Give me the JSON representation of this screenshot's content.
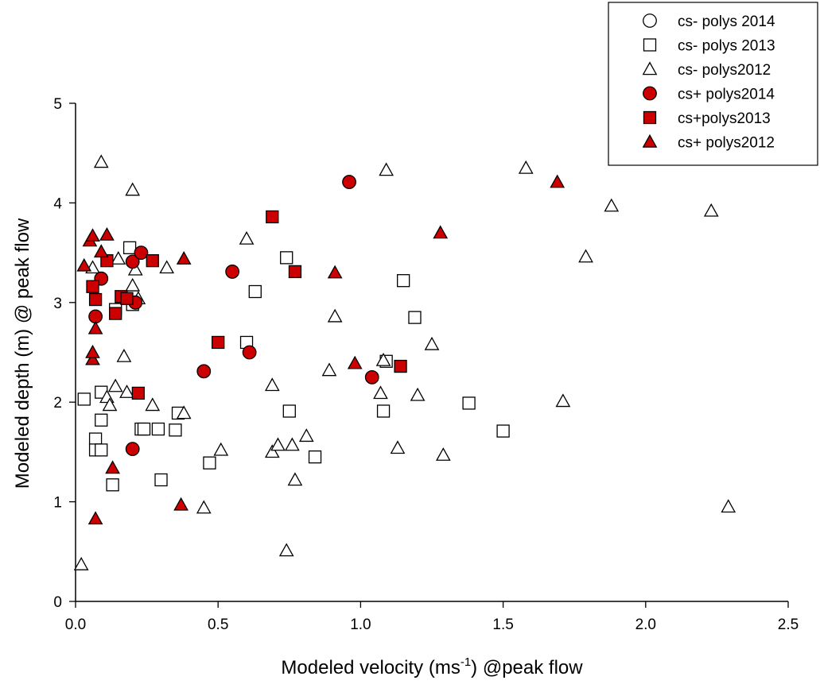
{
  "chart_data": {
    "type": "scatter",
    "xlabel": "Modeled velocity (ms",
    "xlabel_sup": "-1",
    "xlabel_suffix": ") @peak flow",
    "ylabel": "Modeled depth (m) @ peak flow",
    "xlim": [
      0,
      2.5
    ],
    "ylim": [
      0,
      5
    ],
    "xticks": [
      "0.0",
      "0.5",
      "1.0",
      "1.5",
      "2.0",
      "2.5"
    ],
    "yticks": [
      "0",
      "1",
      "2",
      "3",
      "4",
      "5"
    ],
    "grid": false,
    "legend_placement": "top-right",
    "series": [
      {
        "name": "cs- polys 2014",
        "marker": "circle",
        "fill": "#ffffff",
        "stroke": "#000000",
        "points": []
      },
      {
        "name": "cs- polys 2013",
        "marker": "square",
        "fill": "#ffffff",
        "stroke": "#000000",
        "points": [
          [
            0.03,
            2.03
          ],
          [
            0.07,
            1.63
          ],
          [
            0.07,
            1.52
          ],
          [
            0.09,
            1.52
          ],
          [
            0.09,
            1.82
          ],
          [
            0.09,
            2.1
          ],
          [
            0.13,
            1.17
          ],
          [
            0.14,
            2.93
          ],
          [
            0.19,
            3.55
          ],
          [
            0.2,
            2.98
          ],
          [
            0.23,
            1.73
          ],
          [
            0.24,
            1.73
          ],
          [
            0.29,
            1.73
          ],
          [
            0.3,
            1.22
          ],
          [
            0.35,
            1.72
          ],
          [
            0.36,
            1.89
          ],
          [
            0.47,
            1.39
          ],
          [
            0.6,
            2.6
          ],
          [
            0.63,
            3.11
          ],
          [
            0.74,
            3.45
          ],
          [
            0.75,
            1.91
          ],
          [
            0.84,
            1.45
          ],
          [
            1.08,
            1.91
          ],
          [
            1.09,
            2.41
          ],
          [
            1.15,
            3.22
          ],
          [
            1.19,
            2.85
          ],
          [
            1.38,
            1.99
          ],
          [
            1.5,
            1.71
          ]
        ]
      },
      {
        "name": "cs- polys2012",
        "marker": "triangle",
        "fill": "#ffffff",
        "stroke": "#000000",
        "points": [
          [
            0.02,
            0.37
          ],
          [
            0.06,
            3.35
          ],
          [
            0.09,
            4.41
          ],
          [
            0.11,
            2.05
          ],
          [
            0.12,
            1.97
          ],
          [
            0.14,
            2.16
          ],
          [
            0.15,
            3.44
          ],
          [
            0.17,
            2.46
          ],
          [
            0.18,
            2.1
          ],
          [
            0.2,
            3.17
          ],
          [
            0.2,
            4.13
          ],
          [
            0.21,
            3.33
          ],
          [
            0.22,
            3.04
          ],
          [
            0.27,
            1.97
          ],
          [
            0.32,
            3.35
          ],
          [
            0.38,
            1.89
          ],
          [
            0.45,
            0.94
          ],
          [
            0.51,
            1.52
          ],
          [
            0.6,
            3.64
          ],
          [
            0.69,
            1.5
          ],
          [
            0.69,
            2.17
          ],
          [
            0.71,
            1.57
          ],
          [
            0.74,
            0.51
          ],
          [
            0.76,
            1.57
          ],
          [
            0.77,
            1.22
          ],
          [
            0.81,
            1.66
          ],
          [
            0.89,
            2.32
          ],
          [
            0.91,
            2.86
          ],
          [
            1.07,
            2.09
          ],
          [
            1.08,
            2.42
          ],
          [
            1.09,
            4.33
          ],
          [
            1.13,
            1.54
          ],
          [
            1.2,
            2.07
          ],
          [
            1.25,
            2.58
          ],
          [
            1.29,
            1.47
          ],
          [
            1.58,
            4.35
          ],
          [
            1.71,
            2.01
          ],
          [
            1.79,
            3.46
          ],
          [
            1.88,
            3.97
          ],
          [
            2.23,
            3.92
          ],
          [
            2.29,
            0.95
          ]
        ]
      },
      {
        "name": "cs+ polys2014",
        "marker": "circle",
        "fill": "#cc0000",
        "stroke": "#000000",
        "points": [
          [
            0.07,
            2.86
          ],
          [
            0.09,
            3.24
          ],
          [
            0.2,
            1.53
          ],
          [
            0.2,
            3.41
          ],
          [
            0.21,
            3.0
          ],
          [
            0.23,
            3.5
          ],
          [
            0.45,
            2.31
          ],
          [
            0.55,
            3.31
          ],
          [
            0.61,
            2.5
          ],
          [
            0.96,
            4.21
          ],
          [
            1.04,
            2.25
          ]
        ]
      },
      {
        "name": "cs+polys2013",
        "marker": "square",
        "fill": "#cc0000",
        "stroke": "#000000",
        "points": [
          [
            0.06,
            3.16
          ],
          [
            0.07,
            3.03
          ],
          [
            0.11,
            3.42
          ],
          [
            0.14,
            2.89
          ],
          [
            0.16,
            3.06
          ],
          [
            0.18,
            3.04
          ],
          [
            0.22,
            2.09
          ],
          [
            0.27,
            3.42
          ],
          [
            0.5,
            2.6
          ],
          [
            0.69,
            3.86
          ],
          [
            0.77,
            3.31
          ],
          [
            1.14,
            2.36
          ]
        ]
      },
      {
        "name": "cs+ polys2012",
        "marker": "triangle",
        "fill": "#cc0000",
        "stroke": "#000000",
        "points": [
          [
            0.03,
            3.37
          ],
          [
            0.05,
            3.62
          ],
          [
            0.06,
            3.67
          ],
          [
            0.06,
            2.43
          ],
          [
            0.06,
            2.5
          ],
          [
            0.07,
            2.74
          ],
          [
            0.07,
            0.83
          ],
          [
            0.09,
            3.51
          ],
          [
            0.11,
            3.68
          ],
          [
            0.13,
            1.34
          ],
          [
            0.37,
            0.97
          ],
          [
            0.38,
            3.44
          ],
          [
            0.91,
            3.3
          ],
          [
            0.98,
            2.39
          ],
          [
            1.28,
            3.7
          ],
          [
            1.69,
            4.21
          ]
        ]
      }
    ]
  }
}
